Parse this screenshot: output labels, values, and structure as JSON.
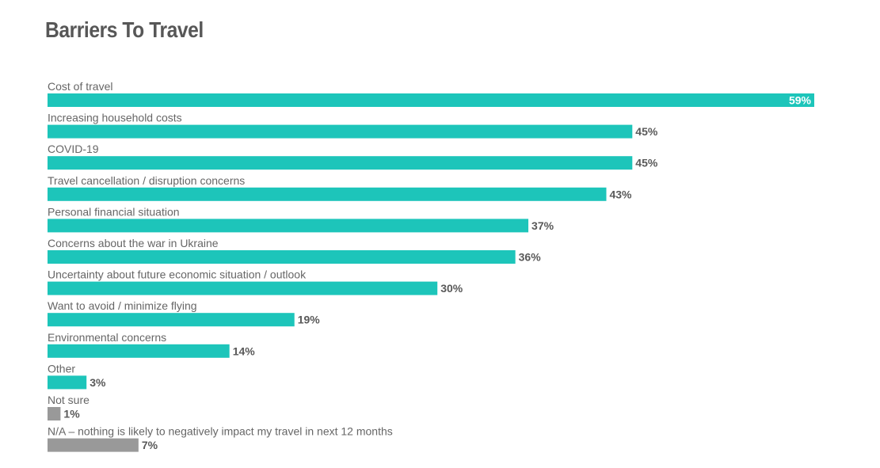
{
  "chart_data": {
    "type": "bar",
    "orientation": "horizontal",
    "title": "Barriers To Travel",
    "xlabel": "",
    "ylabel": "",
    "xlim": [
      0,
      59
    ],
    "grid": false,
    "legend": "none",
    "value_suffix": "%",
    "categories": [
      "Cost of travel",
      "Increasing household costs",
      "COVID-19",
      "Travel cancellation / disruption concerns",
      "Personal financial situation",
      "Concerns about the war in Ukraine",
      "Uncertainty about future economic situation / outlook",
      "Want to avoid / minimize flying",
      "Environmental concerns",
      "Other",
      "Not sure",
      "N/A – nothing is likely to negatively impact my travel in next 12 months"
    ],
    "values": [
      59,
      45,
      45,
      43,
      37,
      36,
      30,
      19,
      14,
      3,
      1,
      7
    ],
    "colors": {
      "primary": "#1DC5BA",
      "secondary": "#999999"
    },
    "bar_colors": [
      "primary",
      "primary",
      "primary",
      "primary",
      "primary",
      "primary",
      "primary",
      "primary",
      "primary",
      "primary",
      "secondary",
      "secondary"
    ]
  }
}
